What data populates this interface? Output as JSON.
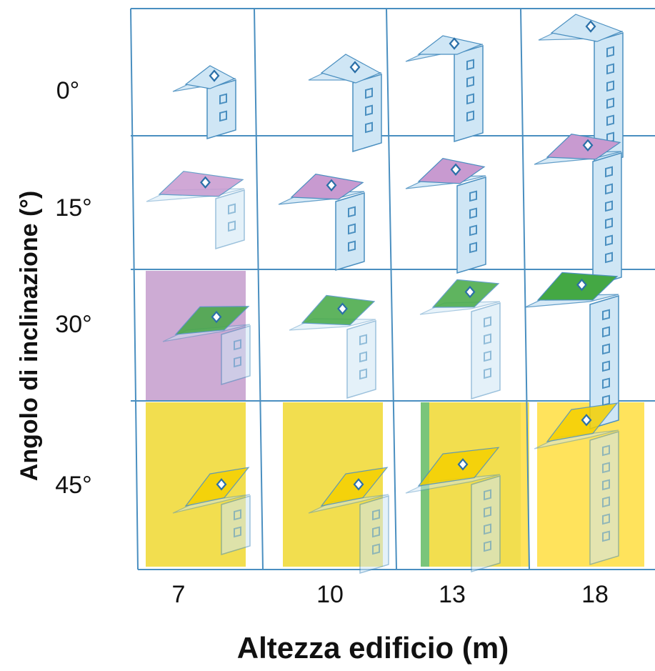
{
  "y_axis": {
    "title": "Angolo di inclinazione (°)",
    "rows": [
      {
        "label": "0°",
        "angle": 0
      },
      {
        "label": "15°",
        "angle": 15
      },
      {
        "label": "30°",
        "angle": 30
      },
      {
        "label": "45°",
        "angle": 45
      }
    ]
  },
  "x_axis": {
    "title": "Altezza edificio (m)",
    "columns": [
      {
        "label": "7",
        "height_m": 7,
        "floors": 2
      },
      {
        "label": "10",
        "height_m": 10,
        "floors": 3
      },
      {
        "label": "13",
        "height_m": 13,
        "floors": 4
      },
      {
        "label": "18",
        "height_m": 18,
        "floors": 6
      }
    ]
  },
  "highlight_colors": {
    "15": "#c8a2cf",
    "30": "#6bbf6b",
    "45": "#ffe04a"
  },
  "roof_colors": {
    "0": "#cfe6f5",
    "15": "#c89ad0",
    "30": "#44a844",
    "45": "#f5d000"
  },
  "highlighted_cells": [
    {
      "row": 1,
      "col": 0
    },
    {
      "row": 2,
      "col": 0
    },
    {
      "row": 2,
      "col": 1
    },
    {
      "row": 2,
      "col": 2
    },
    {
      "row": 3,
      "col": 0
    },
    {
      "row": 3,
      "col": 1
    },
    {
      "row": 3,
      "col": 2
    },
    {
      "row": 3,
      "col": 3
    }
  ],
  "line_color": "#4a8fc0",
  "building_fill": "#cfe6f5"
}
